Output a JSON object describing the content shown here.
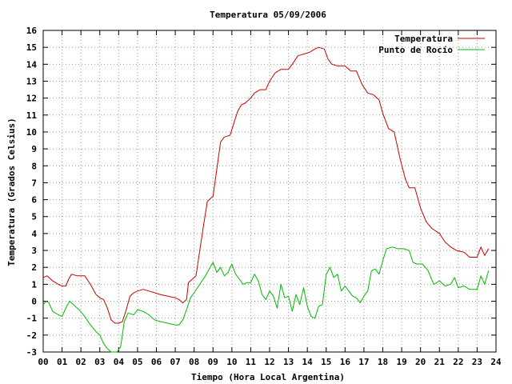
{
  "chart_data": {
    "type": "line",
    "title": "Temperatura 05/09/2006",
    "xlabel": "Tiempo (Hora Local Argentina)",
    "ylabel": "Temperatura (Grados Celsius)",
    "xlim": [
      0,
      24
    ],
    "ylim": [
      -3,
      16
    ],
    "x_ticks": [
      "00",
      "01",
      "02",
      "03",
      "04",
      "05",
      "06",
      "07",
      "08",
      "09",
      "10",
      "11",
      "12",
      "13",
      "14",
      "15",
      "16",
      "17",
      "18",
      "19",
      "20",
      "21",
      "22",
      "23",
      "24"
    ],
    "y_ticks": [
      -3,
      -2,
      -1,
      0,
      1,
      2,
      3,
      4,
      5,
      6,
      7,
      8,
      9,
      10,
      11,
      12,
      13,
      14,
      15,
      16
    ],
    "grid": true,
    "legend_position": "top-right",
    "series": [
      {
        "name": "Temperatura",
        "color": "#cc0000",
        "points": [
          [
            0,
            1.4
          ],
          [
            0.2,
            1.5
          ],
          [
            0.5,
            1.2
          ],
          [
            0.8,
            1.0
          ],
          [
            1.0,
            0.9
          ],
          [
            1.2,
            0.9
          ],
          [
            1.35,
            1.3
          ],
          [
            1.5,
            1.6
          ],
          [
            1.8,
            1.5
          ],
          [
            2.2,
            1.5
          ],
          [
            2.5,
            1.0
          ],
          [
            2.8,
            0.4
          ],
          [
            3.0,
            0.2
          ],
          [
            3.2,
            0.1
          ],
          [
            3.4,
            -0.4
          ],
          [
            3.6,
            -1.1
          ],
          [
            3.8,
            -1.3
          ],
          [
            4.0,
            -1.3
          ],
          [
            4.2,
            -1.2
          ],
          [
            4.4,
            -0.5
          ],
          [
            4.6,
            0.3
          ],
          [
            4.8,
            0.5
          ],
          [
            5.0,
            0.6
          ],
          [
            5.3,
            0.7
          ],
          [
            5.6,
            0.6
          ],
          [
            5.9,
            0.5
          ],
          [
            6.2,
            0.4
          ],
          [
            6.6,
            0.3
          ],
          [
            7.0,
            0.2
          ],
          [
            7.2,
            0.1
          ],
          [
            7.4,
            -0.1
          ],
          [
            7.6,
            0.1
          ],
          [
            7.7,
            1.1
          ],
          [
            7.9,
            1.3
          ],
          [
            8.1,
            1.5
          ],
          [
            8.3,
            3.0
          ],
          [
            8.5,
            4.5
          ],
          [
            8.7,
            5.9
          ],
          [
            9.0,
            6.2
          ],
          [
            9.2,
            7.8
          ],
          [
            9.4,
            9.4
          ],
          [
            9.6,
            9.7
          ],
          [
            9.9,
            9.8
          ],
          [
            10.1,
            10.5
          ],
          [
            10.3,
            11.2
          ],
          [
            10.5,
            11.6
          ],
          [
            10.7,
            11.7
          ],
          [
            11.0,
            12.0
          ],
          [
            11.2,
            12.3
          ],
          [
            11.5,
            12.5
          ],
          [
            11.8,
            12.5
          ],
          [
            12.0,
            13.0
          ],
          [
            12.3,
            13.5
          ],
          [
            12.6,
            13.7
          ],
          [
            13.0,
            13.7
          ],
          [
            13.2,
            14.0
          ],
          [
            13.5,
            14.5
          ],
          [
            13.8,
            14.6
          ],
          [
            14.1,
            14.7
          ],
          [
            14.4,
            14.9
          ],
          [
            14.6,
            15.0
          ],
          [
            14.9,
            14.9
          ],
          [
            15.1,
            14.3
          ],
          [
            15.3,
            14.0
          ],
          [
            15.6,
            13.9
          ],
          [
            16.0,
            13.9
          ],
          [
            16.3,
            13.6
          ],
          [
            16.6,
            13.6
          ],
          [
            16.9,
            12.8
          ],
          [
            17.2,
            12.3
          ],
          [
            17.5,
            12.2
          ],
          [
            17.8,
            11.9
          ],
          [
            18.0,
            11.1
          ],
          [
            18.3,
            10.2
          ],
          [
            18.6,
            10.0
          ],
          [
            18.9,
            8.5
          ],
          [
            19.2,
            7.2
          ],
          [
            19.4,
            6.7
          ],
          [
            19.7,
            6.7
          ],
          [
            20.0,
            5.5
          ],
          [
            20.3,
            4.7
          ],
          [
            20.6,
            4.3
          ],
          [
            21.0,
            4.0
          ],
          [
            21.3,
            3.5
          ],
          [
            21.6,
            3.2
          ],
          [
            21.9,
            3.0
          ],
          [
            22.3,
            2.9
          ],
          [
            22.6,
            2.6
          ],
          [
            23.0,
            2.6
          ],
          [
            23.2,
            3.2
          ],
          [
            23.4,
            2.7
          ],
          [
            23.6,
            3.1
          ]
        ]
      },
      {
        "name": "Punto de Rocío",
        "color": "#00bb00",
        "points": [
          [
            0,
            -0.2
          ],
          [
            0.15,
            0.0
          ],
          [
            0.3,
            -0.1
          ],
          [
            0.5,
            -0.6
          ],
          [
            0.8,
            -0.8
          ],
          [
            1.0,
            -0.9
          ],
          [
            1.2,
            -0.4
          ],
          [
            1.4,
            0.0
          ],
          [
            1.6,
            -0.2
          ],
          [
            1.9,
            -0.5
          ],
          [
            2.2,
            -0.9
          ],
          [
            2.5,
            -1.4
          ],
          [
            2.8,
            -1.8
          ],
          [
            3.0,
            -2.0
          ],
          [
            3.2,
            -2.5
          ],
          [
            3.4,
            -2.8
          ],
          [
            3.6,
            -3.0
          ],
          [
            3.9,
            -3.0
          ],
          [
            4.1,
            -2.7
          ],
          [
            4.3,
            -1.2
          ],
          [
            4.5,
            -0.7
          ],
          [
            4.8,
            -0.8
          ],
          [
            5.0,
            -0.5
          ],
          [
            5.3,
            -0.6
          ],
          [
            5.6,
            -0.8
          ],
          [
            5.9,
            -1.1
          ],
          [
            6.2,
            -1.2
          ],
          [
            6.6,
            -1.3
          ],
          [
            7.0,
            -1.4
          ],
          [
            7.2,
            -1.4
          ],
          [
            7.4,
            -1.1
          ],
          [
            7.6,
            -0.5
          ],
          [
            7.8,
            0.2
          ],
          [
            8.0,
            0.5
          ],
          [
            8.3,
            1.0
          ],
          [
            8.6,
            1.5
          ],
          [
            8.8,
            1.9
          ],
          [
            9.0,
            2.3
          ],
          [
            9.2,
            1.7
          ],
          [
            9.4,
            2.0
          ],
          [
            9.6,
            1.5
          ],
          [
            9.8,
            1.7
          ],
          [
            10.0,
            2.2
          ],
          [
            10.2,
            1.6
          ],
          [
            10.4,
            1.3
          ],
          [
            10.6,
            1.0
          ],
          [
            10.8,
            1.1
          ],
          [
            11.0,
            1.1
          ],
          [
            11.2,
            1.6
          ],
          [
            11.4,
            1.2
          ],
          [
            11.6,
            0.4
          ],
          [
            11.8,
            0.1
          ],
          [
            12.0,
            0.6
          ],
          [
            12.2,
            0.3
          ],
          [
            12.4,
            -0.4
          ],
          [
            12.6,
            1.0
          ],
          [
            12.8,
            0.2
          ],
          [
            13.0,
            0.3
          ],
          [
            13.2,
            -0.6
          ],
          [
            13.4,
            0.4
          ],
          [
            13.6,
            -0.2
          ],
          [
            13.8,
            0.8
          ],
          [
            14.0,
            -0.3
          ],
          [
            14.2,
            -0.9
          ],
          [
            14.4,
            -1.0
          ],
          [
            14.6,
            -0.3
          ],
          [
            14.8,
            -0.2
          ],
          [
            15.0,
            1.6
          ],
          [
            15.2,
            2.0
          ],
          [
            15.4,
            1.4
          ],
          [
            15.6,
            1.6
          ],
          [
            15.8,
            0.6
          ],
          [
            16.0,
            0.9
          ],
          [
            16.2,
            0.6
          ],
          [
            16.4,
            0.3
          ],
          [
            16.6,
            0.2
          ],
          [
            16.8,
            -0.1
          ],
          [
            17.0,
            0.3
          ],
          [
            17.2,
            0.6
          ],
          [
            17.4,
            1.8
          ],
          [
            17.6,
            1.9
          ],
          [
            17.8,
            1.6
          ],
          [
            18.0,
            2.4
          ],
          [
            18.2,
            3.1
          ],
          [
            18.5,
            3.2
          ],
          [
            18.8,
            3.1
          ],
          [
            19.1,
            3.1
          ],
          [
            19.4,
            3.0
          ],
          [
            19.6,
            2.3
          ],
          [
            19.8,
            2.2
          ],
          [
            20.1,
            2.2
          ],
          [
            20.4,
            1.8
          ],
          [
            20.7,
            1.0
          ],
          [
            21.0,
            1.2
          ],
          [
            21.3,
            0.9
          ],
          [
            21.6,
            1.0
          ],
          [
            21.8,
            1.4
          ],
          [
            22.0,
            0.8
          ],
          [
            22.3,
            0.9
          ],
          [
            22.6,
            0.7
          ],
          [
            23.0,
            0.7
          ],
          [
            23.2,
            1.5
          ],
          [
            23.4,
            1.0
          ],
          [
            23.6,
            1.8
          ]
        ]
      }
    ]
  }
}
